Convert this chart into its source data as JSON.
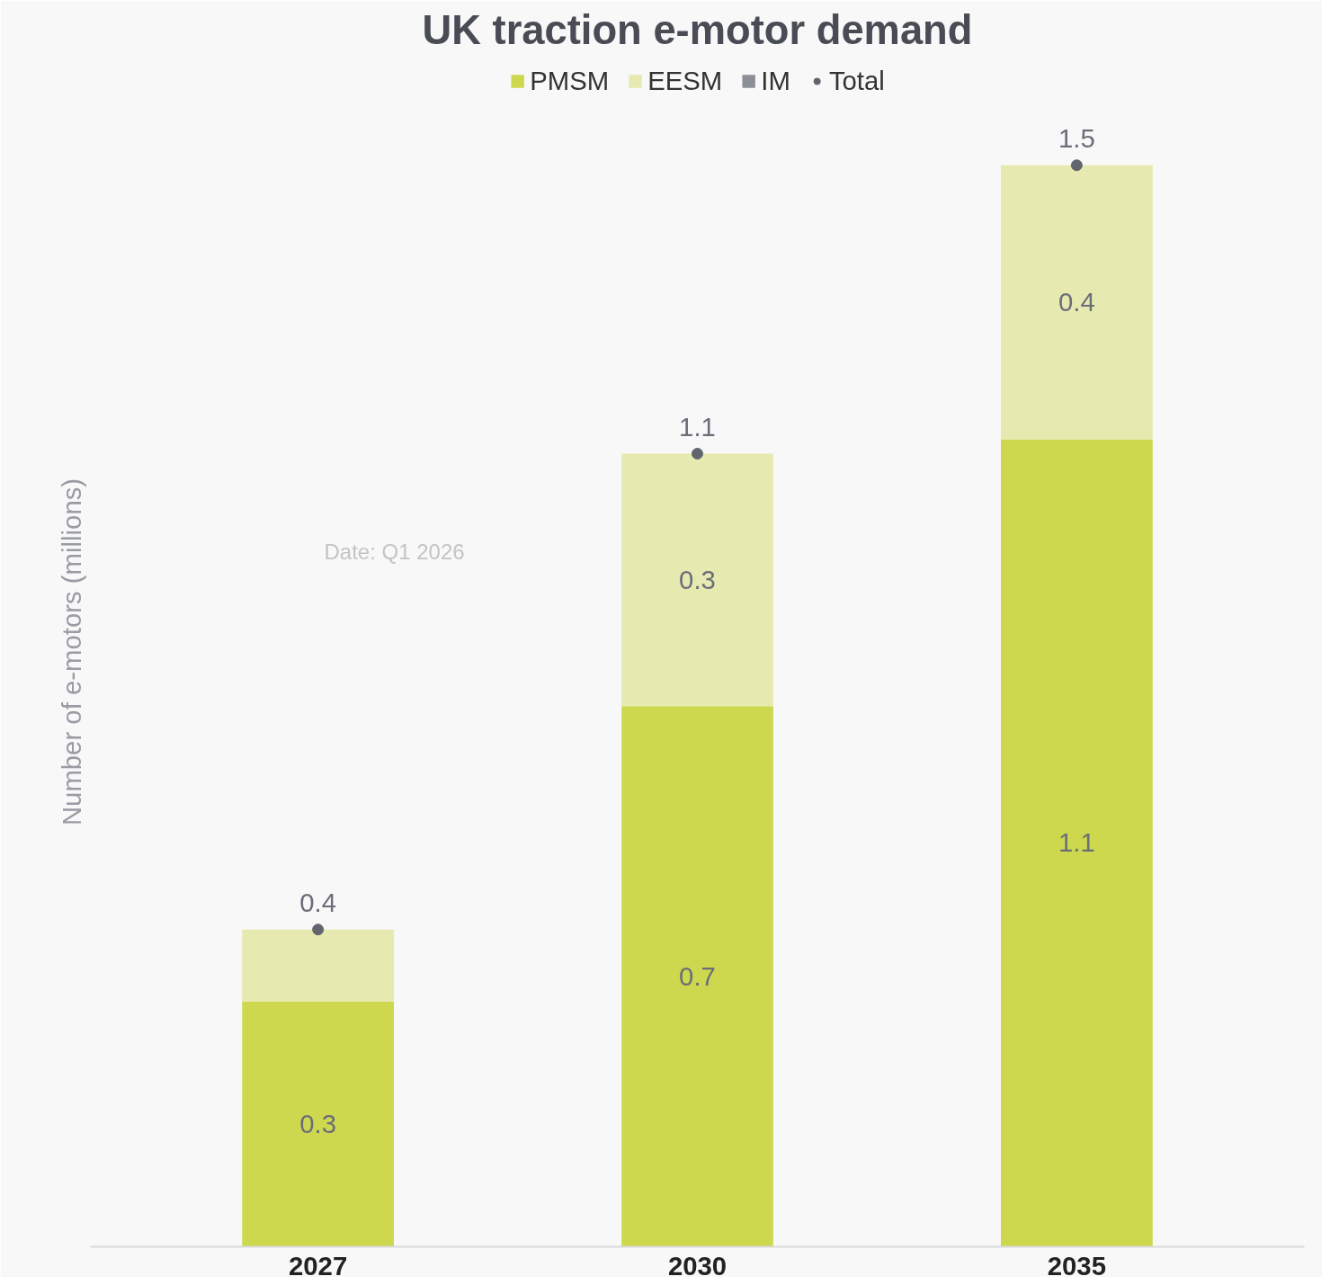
{
  "chart_data": {
    "type": "bar",
    "title": "UK traction e-motor demand",
    "ylabel": "Number of e-motors (millions)",
    "categories": [
      "2027",
      "2030",
      "2035"
    ],
    "stacked": true,
    "ylim": [
      0,
      1.65
    ],
    "tick_labels": "x",
    "grid": false,
    "legend": "top",
    "annotations": [
      "Date: Q1 2026"
    ],
    "series": [
      {
        "name": "PMSM",
        "color": "#cdd84f",
        "values": [
          0.34,
          0.75,
          1.12
        ],
        "value_labels": [
          "0.3",
          "0.7",
          "1.1"
        ]
      },
      {
        "name": "EESM",
        "color": "#e7eab0",
        "values": [
          0.1,
          0.35,
          0.38
        ],
        "value_labels": [
          null,
          "0.3",
          "0.4"
        ]
      },
      {
        "name": "IM",
        "color": "#8c8f96",
        "values": [
          0,
          0,
          0
        ],
        "value_labels": [
          null,
          null,
          null
        ]
      },
      {
        "name": "Total",
        "type": "scatter",
        "marker": "circle",
        "color": "#62646e",
        "values": [
          0.44,
          1.1,
          1.5
        ],
        "value_labels": [
          "0.4",
          "1.1",
          "1.5"
        ]
      }
    ]
  }
}
